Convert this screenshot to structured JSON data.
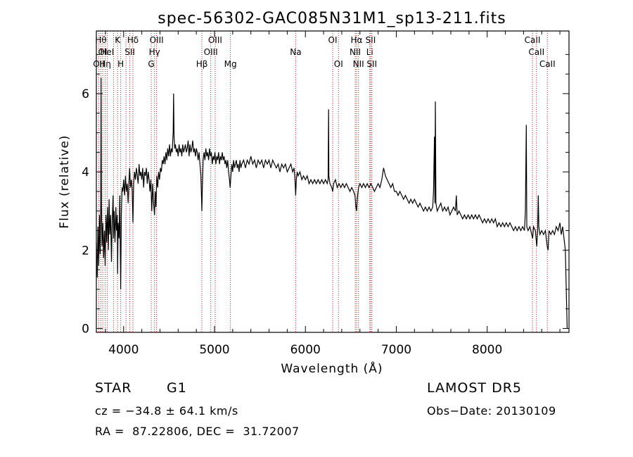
{
  "chart_data": {
    "type": "line",
    "title": "spec-56302-GAC085N31M1_sp13-211.fits",
    "xlabel": "Wavelength (Å)",
    "ylabel": "Flux (relative)",
    "xlim": [
      3700,
      8900
    ],
    "ylim": [
      -0.1,
      7.6
    ],
    "xticks": [
      4000,
      5000,
      6000,
      7000,
      8000
    ],
    "yticks": [
      0,
      2,
      4,
      6
    ],
    "grid": false,
    "line_color": "#000000",
    "marker_color": "#b22222",
    "spectral_lines": [
      {
        "x": 3727,
        "label": "OII",
        "row": 3
      },
      {
        "x": 3750,
        "label": "Hθ",
        "row": 1
      },
      {
        "x": 3770,
        "label": "OI",
        "row": 2
      },
      {
        "x": 3797,
        "label": "Hη",
        "row": 3
      },
      {
        "x": 3819,
        "label": "HeI",
        "row": 2
      },
      {
        "x": 3889,
        "label": "",
        "row": 0
      },
      {
        "x": 3934,
        "label": "K",
        "row": 1
      },
      {
        "x": 3968,
        "label": "H",
        "row": 3
      },
      {
        "x": 4026,
        "label": "",
        "row": 0
      },
      {
        "x": 4068,
        "label": "SII",
        "row": 2
      },
      {
        "x": 4102,
        "label": "Hδ",
        "row": 1
      },
      {
        "x": 4304,
        "label": "G",
        "row": 3
      },
      {
        "x": 4340,
        "label": "Hγ",
        "row": 2
      },
      {
        "x": 4363,
        "label": "OIII",
        "row": 1
      },
      {
        "x": 4861,
        "label": "Hβ",
        "row": 3
      },
      {
        "x": 4959,
        "label": "OIII",
        "row": 2
      },
      {
        "x": 5007,
        "label": "OIII",
        "row": 1
      },
      {
        "x": 5175,
        "label": "Mg",
        "row": 3
      },
      {
        "x": 5893,
        "label": "Na",
        "row": 2
      },
      {
        "x": 6300,
        "label": "OI",
        "row": 1
      },
      {
        "x": 6364,
        "label": "OI",
        "row": 3
      },
      {
        "x": 6548,
        "label": "NII",
        "row": 2
      },
      {
        "x": 6563,
        "label": "Hα",
        "row": 1
      },
      {
        "x": 6584,
        "label": "NII",
        "row": 3
      },
      {
        "x": 6708,
        "label": "Li",
        "row": 2
      },
      {
        "x": 6717,
        "label": "SII",
        "row": 1
      },
      {
        "x": 6731,
        "label": "SII",
        "row": 3
      },
      {
        "x": 8498,
        "label": "CaII",
        "row": 1
      },
      {
        "x": 8542,
        "label": "CaII",
        "row": 2
      },
      {
        "x": 8662,
        "label": "CaII",
        "row": 3
      }
    ],
    "spectrum": [
      [
        3700,
        2.2
      ],
      [
        3710,
        1.3
      ],
      [
        3718,
        2.6
      ],
      [
        3726,
        1.6
      ],
      [
        3734,
        2.9
      ],
      [
        3742,
        1.9
      ],
      [
        3748,
        3.1
      ],
      [
        3752,
        6.4
      ],
      [
        3756,
        3.2
      ],
      [
        3763,
        2.1
      ],
      [
        3772,
        2.7
      ],
      [
        3780,
        1.8
      ],
      [
        3789,
        2.5
      ],
      [
        3797,
        1.6
      ],
      [
        3806,
        2.9
      ],
      [
        3814,
        2.2
      ],
      [
        3823,
        3.1
      ],
      [
        3832,
        2.0
      ],
      [
        3840,
        3.3
      ],
      [
        3848,
        2.4
      ],
      [
        3857,
        2.9
      ],
      [
        3866,
        1.7
      ],
      [
        3875,
        2.8
      ],
      [
        3884,
        3.4
      ],
      [
        3889,
        2.3
      ],
      [
        3896,
        3.0
      ],
      [
        3905,
        2.2
      ],
      [
        3914,
        3.1
      ],
      [
        3922,
        2.5
      ],
      [
        3930,
        2.9
      ],
      [
        3934,
        1.4
      ],
      [
        3940,
        2.7
      ],
      [
        3950,
        2.3
      ],
      [
        3958,
        3.4
      ],
      [
        3968,
        1.0
      ],
      [
        3975,
        2.9
      ],
      [
        3983,
        3.6
      ],
      [
        3992,
        3.5
      ],
      [
        4000,
        3.8
      ],
      [
        4010,
        3.4
      ],
      [
        4020,
        3.9
      ],
      [
        4030,
        3.5
      ],
      [
        4040,
        3.7
      ],
      [
        4050,
        3.2
      ],
      [
        4060,
        3.8
      ],
      [
        4066,
        4.1
      ],
      [
        4075,
        3.6
      ],
      [
        4085,
        3.8
      ],
      [
        4095,
        3.5
      ],
      [
        4102,
        2.7
      ],
      [
        4110,
        3.7
      ],
      [
        4120,
        4.0
      ],
      [
        4130,
        3.8
      ],
      [
        4140,
        4.1
      ],
      [
        4150,
        3.9
      ],
      [
        4160,
        3.7
      ],
      [
        4170,
        4.2
      ],
      [
        4180,
        3.9
      ],
      [
        4190,
        4.0
      ],
      [
        4200,
        3.8
      ],
      [
        4210,
        4.1
      ],
      [
        4220,
        3.6
      ],
      [
        4230,
        4.0
      ],
      [
        4240,
        3.9
      ],
      [
        4250,
        4.1
      ],
      [
        4260,
        3.7
      ],
      [
        4270,
        4.0
      ],
      [
        4280,
        3.8
      ],
      [
        4290,
        3.5
      ],
      [
        4300,
        3.8
      ],
      [
        4310,
        3.0
      ],
      [
        4320,
        3.7
      ],
      [
        4330,
        3.2
      ],
      [
        4340,
        2.9
      ],
      [
        4348,
        3.5
      ],
      [
        4356,
        3.1
      ],
      [
        4365,
        3.9
      ],
      [
        4375,
        3.6
      ],
      [
        4385,
        4.0
      ],
      [
        4395,
        3.8
      ],
      [
        4405,
        4.1
      ],
      [
        4415,
        4.0
      ],
      [
        4425,
        4.3
      ],
      [
        4435,
        4.2
      ],
      [
        4445,
        4.4
      ],
      [
        4455,
        4.2
      ],
      [
        4465,
        4.5
      ],
      [
        4475,
        4.3
      ],
      [
        4485,
        4.6
      ],
      [
        4495,
        4.4
      ],
      [
        4505,
        4.7
      ],
      [
        4515,
        4.4
      ],
      [
        4525,
        4.6
      ],
      [
        4535,
        4.5
      ],
      [
        4540,
        4.8
      ],
      [
        4545,
        5.0
      ],
      [
        4550,
        6.0
      ],
      [
        4555,
        4.9
      ],
      [
        4562,
        4.6
      ],
      [
        4570,
        4.7
      ],
      [
        4580,
        4.5
      ],
      [
        4590,
        4.6
      ],
      [
        4600,
        4.4
      ],
      [
        4610,
        4.7
      ],
      [
        4620,
        4.5
      ],
      [
        4630,
        4.6
      ],
      [
        4640,
        4.4
      ],
      [
        4650,
        4.7
      ],
      [
        4660,
        4.5
      ],
      [
        4670,
        4.6
      ],
      [
        4680,
        4.7
      ],
      [
        4690,
        4.5
      ],
      [
        4700,
        4.6
      ],
      [
        4710,
        4.8
      ],
      [
        4720,
        4.4
      ],
      [
        4730,
        4.7
      ],
      [
        4740,
        4.5
      ],
      [
        4750,
        4.6
      ],
      [
        4760,
        4.8
      ],
      [
        4770,
        4.5
      ],
      [
        4780,
        4.6
      ],
      [
        4790,
        4.4
      ],
      [
        4800,
        4.6
      ],
      [
        4810,
        4.5
      ],
      [
        4820,
        4.3
      ],
      [
        4830,
        4.5
      ],
      [
        4840,
        4.2
      ],
      [
        4850,
        3.9
      ],
      [
        4858,
        3.3
      ],
      [
        4861,
        3.0
      ],
      [
        4866,
        3.6
      ],
      [
        4875,
        4.3
      ],
      [
        4885,
        4.5
      ],
      [
        4895,
        4.3
      ],
      [
        4905,
        4.6
      ],
      [
        4915,
        4.4
      ],
      [
        4925,
        4.5
      ],
      [
        4935,
        4.3
      ],
      [
        4945,
        4.6
      ],
      [
        4955,
        4.4
      ],
      [
        4965,
        4.5
      ],
      [
        4975,
        4.2
      ],
      [
        4985,
        4.4
      ],
      [
        4995,
        4.3
      ],
      [
        5005,
        4.5
      ],
      [
        5015,
        4.2
      ],
      [
        5025,
        4.4
      ],
      [
        5035,
        4.3
      ],
      [
        5045,
        4.5
      ],
      [
        5055,
        4.2
      ],
      [
        5065,
        4.4
      ],
      [
        5075,
        4.3
      ],
      [
        5085,
        4.5
      ],
      [
        5095,
        4.3
      ],
      [
        5105,
        4.4
      ],
      [
        5115,
        4.2
      ],
      [
        5125,
        4.3
      ],
      [
        5135,
        4.1
      ],
      [
        5145,
        4.3
      ],
      [
        5155,
        4.0
      ],
      [
        5165,
        3.8
      ],
      [
        5172,
        3.6
      ],
      [
        5180,
        3.9
      ],
      [
        5190,
        4.2
      ],
      [
        5200,
        4.0
      ],
      [
        5210,
        4.3
      ],
      [
        5220,
        4.1
      ],
      [
        5230,
        4.2
      ],
      [
        5240,
        4.3
      ],
      [
        5250,
        4.1
      ],
      [
        5260,
        4.2
      ],
      [
        5270,
        4.0
      ],
      [
        5280,
        4.3
      ],
      [
        5290,
        4.1
      ],
      [
        5300,
        4.2
      ],
      [
        5320,
        4.3
      ],
      [
        5340,
        4.1
      ],
      [
        5360,
        4.3
      ],
      [
        5380,
        4.2
      ],
      [
        5400,
        4.4
      ],
      [
        5420,
        4.2
      ],
      [
        5440,
        4.3
      ],
      [
        5460,
        4.1
      ],
      [
        5480,
        4.3
      ],
      [
        5500,
        4.2
      ],
      [
        5520,
        4.3
      ],
      [
        5540,
        4.1
      ],
      [
        5560,
        4.3
      ],
      [
        5580,
        4.2
      ],
      [
        5600,
        4.3
      ],
      [
        5620,
        4.1
      ],
      [
        5640,
        4.3
      ],
      [
        5660,
        4.2
      ],
      [
        5680,
        4.1
      ],
      [
        5700,
        4.2
      ],
      [
        5720,
        4.0
      ],
      [
        5740,
        4.2
      ],
      [
        5760,
        4.1
      ],
      [
        5780,
        4.2
      ],
      [
        5800,
        4.0
      ],
      [
        5820,
        4.1
      ],
      [
        5840,
        4.2
      ],
      [
        5860,
        4.0
      ],
      [
        5875,
        4.1
      ],
      [
        5885,
        3.8
      ],
      [
        5893,
        3.4
      ],
      [
        5900,
        3.8
      ],
      [
        5910,
        4.0
      ],
      [
        5920,
        3.9
      ],
      [
        5940,
        4.0
      ],
      [
        5960,
        3.8
      ],
      [
        5980,
        3.9
      ],
      [
        6000,
        3.8
      ],
      [
        6020,
        3.9
      ],
      [
        6040,
        3.7
      ],
      [
        6060,
        3.8
      ],
      [
        6080,
        3.7
      ],
      [
        6100,
        3.8
      ],
      [
        6120,
        3.7
      ],
      [
        6140,
        3.8
      ],
      [
        6160,
        3.7
      ],
      [
        6180,
        3.8
      ],
      [
        6200,
        3.7
      ],
      [
        6220,
        3.8
      ],
      [
        6240,
        3.7
      ],
      [
        6250,
        3.8
      ],
      [
        6255,
        5.6
      ],
      [
        6258,
        3.9
      ],
      [
        6270,
        3.7
      ],
      [
        6290,
        3.6
      ],
      [
        6300,
        3.5
      ],
      [
        6310,
        3.7
      ],
      [
        6330,
        3.8
      ],
      [
        6350,
        3.6
      ],
      [
        6370,
        3.7
      ],
      [
        6390,
        3.6
      ],
      [
        6410,
        3.7
      ],
      [
        6430,
        3.6
      ],
      [
        6450,
        3.7
      ],
      [
        6470,
        3.6
      ],
      [
        6490,
        3.5
      ],
      [
        6510,
        3.6
      ],
      [
        6530,
        3.5
      ],
      [
        6545,
        3.4
      ],
      [
        6555,
        3.1
      ],
      [
        6563,
        3.0
      ],
      [
        6570,
        3.3
      ],
      [
        6585,
        3.6
      ],
      [
        6600,
        3.7
      ],
      [
        6620,
        3.6
      ],
      [
        6640,
        3.7
      ],
      [
        6660,
        3.6
      ],
      [
        6680,
        3.7
      ],
      [
        6700,
        3.6
      ],
      [
        6720,
        3.7
      ],
      [
        6740,
        3.6
      ],
      [
        6760,
        3.5
      ],
      [
        6780,
        3.6
      ],
      [
        6800,
        3.7
      ],
      [
        6820,
        3.6
      ],
      [
        6840,
        3.8
      ],
      [
        6860,
        4.1
      ],
      [
        6880,
        3.9
      ],
      [
        6900,
        3.8
      ],
      [
        6920,
        3.7
      ],
      [
        6940,
        3.6
      ],
      [
        6960,
        3.7
      ],
      [
        6980,
        3.5
      ],
      [
        7000,
        3.5
      ],
      [
        7020,
        3.4
      ],
      [
        7040,
        3.5
      ],
      [
        7060,
        3.4
      ],
      [
        7080,
        3.3
      ],
      [
        7100,
        3.4
      ],
      [
        7120,
        3.3
      ],
      [
        7140,
        3.2
      ],
      [
        7160,
        3.3
      ],
      [
        7180,
        3.2
      ],
      [
        7200,
        3.3
      ],
      [
        7220,
        3.2
      ],
      [
        7240,
        3.1
      ],
      [
        7260,
        3.2
      ],
      [
        7280,
        3.1
      ],
      [
        7300,
        3.0
      ],
      [
        7320,
        3.1
      ],
      [
        7340,
        3.0
      ],
      [
        7360,
        3.1
      ],
      [
        7380,
        3.0
      ],
      [
        7400,
        3.1
      ],
      [
        7410,
        3.5
      ],
      [
        7420,
        4.9
      ],
      [
        7425,
        3.2
      ],
      [
        7430,
        5.8
      ],
      [
        7436,
        3.2
      ],
      [
        7450,
        3.0
      ],
      [
        7470,
        3.1
      ],
      [
        7490,
        3.2
      ],
      [
        7510,
        3.0
      ],
      [
        7530,
        3.1
      ],
      [
        7550,
        3.0
      ],
      [
        7570,
        3.1
      ],
      [
        7590,
        2.9
      ],
      [
        7610,
        3.0
      ],
      [
        7630,
        3.1
      ],
      [
        7650,
        3.0
      ],
      [
        7660,
        3.4
      ],
      [
        7670,
        2.9
      ],
      [
        7690,
        3.0
      ],
      [
        7710,
        2.9
      ],
      [
        7730,
        2.8
      ],
      [
        7750,
        2.9
      ],
      [
        7770,
        2.8
      ],
      [
        7790,
        2.9
      ],
      [
        7810,
        2.8
      ],
      [
        7830,
        2.9
      ],
      [
        7850,
        2.8
      ],
      [
        7870,
        2.9
      ],
      [
        7890,
        2.8
      ],
      [
        7910,
        2.9
      ],
      [
        7930,
        2.8
      ],
      [
        7950,
        2.7
      ],
      [
        7970,
        2.8
      ],
      [
        7990,
        2.7
      ],
      [
        8010,
        2.8
      ],
      [
        8030,
        2.7
      ],
      [
        8050,
        2.8
      ],
      [
        8070,
        2.7
      ],
      [
        8090,
        2.8
      ],
      [
        8110,
        2.6
      ],
      [
        8130,
        2.7
      ],
      [
        8150,
        2.6
      ],
      [
        8170,
        2.7
      ],
      [
        8190,
        2.6
      ],
      [
        8210,
        2.7
      ],
      [
        8230,
        2.6
      ],
      [
        8250,
        2.7
      ],
      [
        8270,
        2.6
      ],
      [
        8290,
        2.5
      ],
      [
        8310,
        2.6
      ],
      [
        8330,
        2.5
      ],
      [
        8350,
        2.6
      ],
      [
        8370,
        2.5
      ],
      [
        8390,
        2.6
      ],
      [
        8410,
        2.5
      ],
      [
        8420,
        3.0
      ],
      [
        8430,
        5.2
      ],
      [
        8436,
        2.6
      ],
      [
        8450,
        2.5
      ],
      [
        8470,
        2.6
      ],
      [
        8490,
        2.4
      ],
      [
        8500,
        2.3
      ],
      [
        8510,
        2.6
      ],
      [
        8530,
        2.5
      ],
      [
        8545,
        2.1
      ],
      [
        8555,
        2.5
      ],
      [
        8562,
        3.4
      ],
      [
        8568,
        2.6
      ],
      [
        8580,
        2.4
      ],
      [
        8600,
        2.5
      ],
      [
        8620,
        2.4
      ],
      [
        8640,
        2.5
      ],
      [
        8660,
        2.1
      ],
      [
        8670,
        2.0
      ],
      [
        8680,
        2.5
      ],
      [
        8700,
        2.4
      ],
      [
        8720,
        2.5
      ],
      [
        8740,
        2.4
      ],
      [
        8760,
        2.6
      ],
      [
        8780,
        2.5
      ],
      [
        8800,
        2.7
      ],
      [
        8815,
        2.4
      ],
      [
        8830,
        2.6
      ],
      [
        8845,
        2.3
      ],
      [
        8860,
        2.0
      ],
      [
        8870,
        1.0
      ],
      [
        8880,
        0.0
      ]
    ]
  },
  "footer": {
    "object_class": "STAR",
    "subclass": "G1",
    "survey": "LAMOST DR5",
    "cz": "cz = −34.8 ± 64.1 km/s",
    "obs_date": "Obs−Date: 20130109",
    "coords": "RA =  87.22806, DEC =  31.72007"
  }
}
